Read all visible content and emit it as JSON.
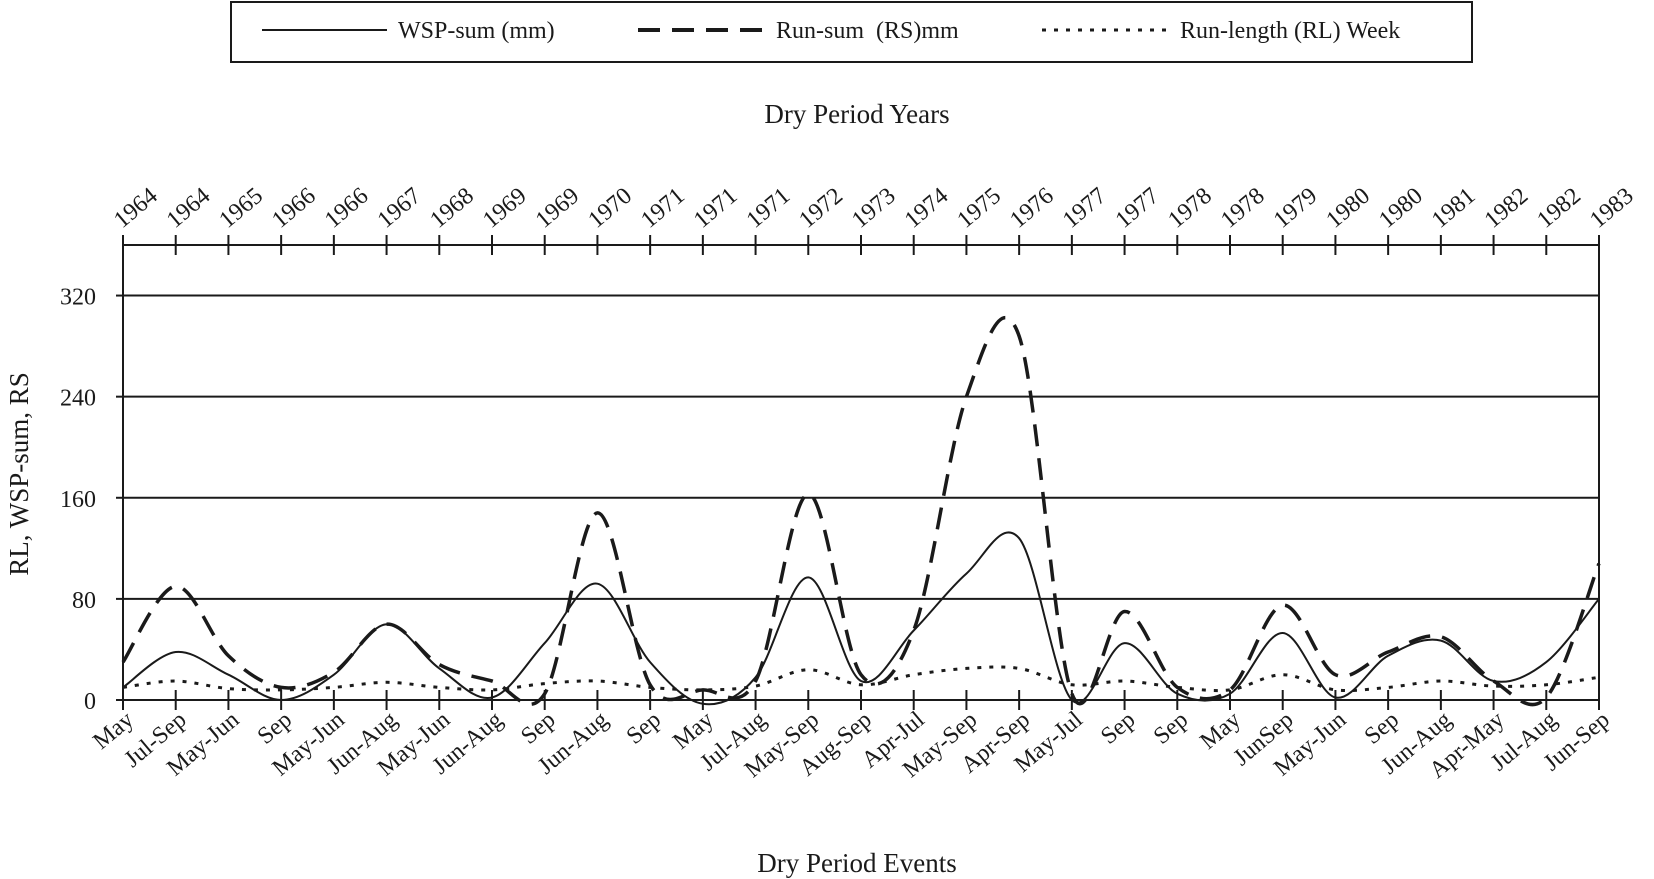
{
  "chart_data": {
    "type": "line",
    "title": "",
    "x_top_label": "Dry Period Years",
    "xlabel": "Dry Period Events",
    "ylabel": "RL, WSP-sum, RS",
    "ylim": [
      0,
      360
    ],
    "yticks": [
      0,
      80,
      160,
      240,
      320
    ],
    "grid": "horizontal",
    "legend_position": "top",
    "years": [
      "1964",
      "1964",
      "1965",
      "1966",
      "1966",
      "1967",
      "1968",
      "1969",
      "1969",
      "1970",
      "1971",
      "1971",
      "1971",
      "1972",
      "1973",
      "1974",
      "1975",
      "1976",
      "1977",
      "1977",
      "1978",
      "1978",
      "1979",
      "1980",
      "1980",
      "1981",
      "1982",
      "1982",
      "1983"
    ],
    "categories": [
      "May",
      "Jul-Sep",
      "May-Jun",
      "Sep",
      "May-Jun",
      "Jun-Aug",
      "May-Jun",
      "Jun-Aug",
      "Sep",
      "Jun-Aug",
      "Sep",
      "May",
      "Jul-Aug",
      "May-Sep",
      "Aug-Sep",
      "Apr-Jul",
      "May-Sep",
      "Apr-Sep",
      "May-Jul",
      "Sep",
      "Sep",
      "May",
      "JunSep",
      "May-Jun",
      "Sep",
      "Jun-Aug",
      "Apr-May",
      "Jul-Aug",
      "Jun-Sep"
    ],
    "series": [
      {
        "name": "WSP-sum (mm)",
        "style": "solid",
        "values": [
          10,
          38,
          20,
          0,
          20,
          60,
          25,
          2,
          45,
          92,
          30,
          -3,
          18,
          97,
          15,
          55,
          100,
          128,
          0,
          45,
          5,
          5,
          53,
          2,
          35,
          47,
          15,
          30,
          80
        ]
      },
      {
        "name": "Run-sum  (RS)mm",
        "style": "dashed",
        "values": [
          30,
          90,
          35,
          10,
          22,
          60,
          28,
          15,
          5,
          148,
          12,
          8,
          15,
          163,
          20,
          55,
          240,
          288,
          5,
          70,
          10,
          8,
          75,
          20,
          38,
          50,
          15,
          2,
          108
        ]
      },
      {
        "name": "Run-length (RL) Week",
        "style": "dotted",
        "values": [
          10,
          15,
          9,
          8,
          10,
          14,
          10,
          8,
          13,
          15,
          10,
          8,
          11,
          24,
          12,
          20,
          25,
          25,
          12,
          15,
          10,
          8,
          20,
          8,
          10,
          15,
          11,
          12,
          18
        ]
      }
    ]
  }
}
